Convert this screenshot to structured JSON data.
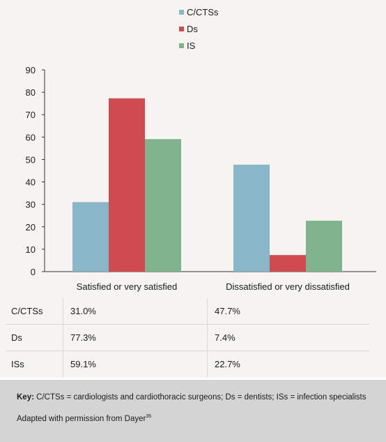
{
  "chart_data": {
    "type": "bar",
    "categories": [
      "Satisfied or very satisfied",
      "Dissatisfied or very dissatisfied"
    ],
    "series": [
      {
        "name": "C/CTSs",
        "values": [
          31.0,
          47.7
        ],
        "color": "#89b7c7"
      },
      {
        "name": "Ds",
        "values": [
          77.3,
          7.4
        ],
        "color": "#cf4b50"
      },
      {
        "name": "IS",
        "values": [
          59.1,
          22.7
        ],
        "color": "#7fb38d"
      }
    ],
    "ylim": [
      0,
      90
    ],
    "yticks": [
      0,
      10,
      20,
      30,
      40,
      50,
      60,
      70,
      80,
      90
    ],
    "grid": false,
    "legend_position": "top-center",
    "title": "",
    "xlabel": "",
    "ylabel": ""
  },
  "table": {
    "rows": [
      {
        "label": "C/CTSs",
        "values": [
          "31.0%",
          "47.7%"
        ]
      },
      {
        "label": "Ds",
        "values": [
          "77.3%",
          "7.4%"
        ]
      },
      {
        "label": "ISs",
        "values": [
          "59.1%",
          "22.7%"
        ]
      }
    ]
  },
  "footer": {
    "key_label": "Key:",
    "key_text": "C/CTSs = cardiologists and cardiothoracic surgeons; Ds = dentists; ISs = infection specialists",
    "adapted_text": "Adapted with permission from Dayer",
    "reference": "36"
  }
}
